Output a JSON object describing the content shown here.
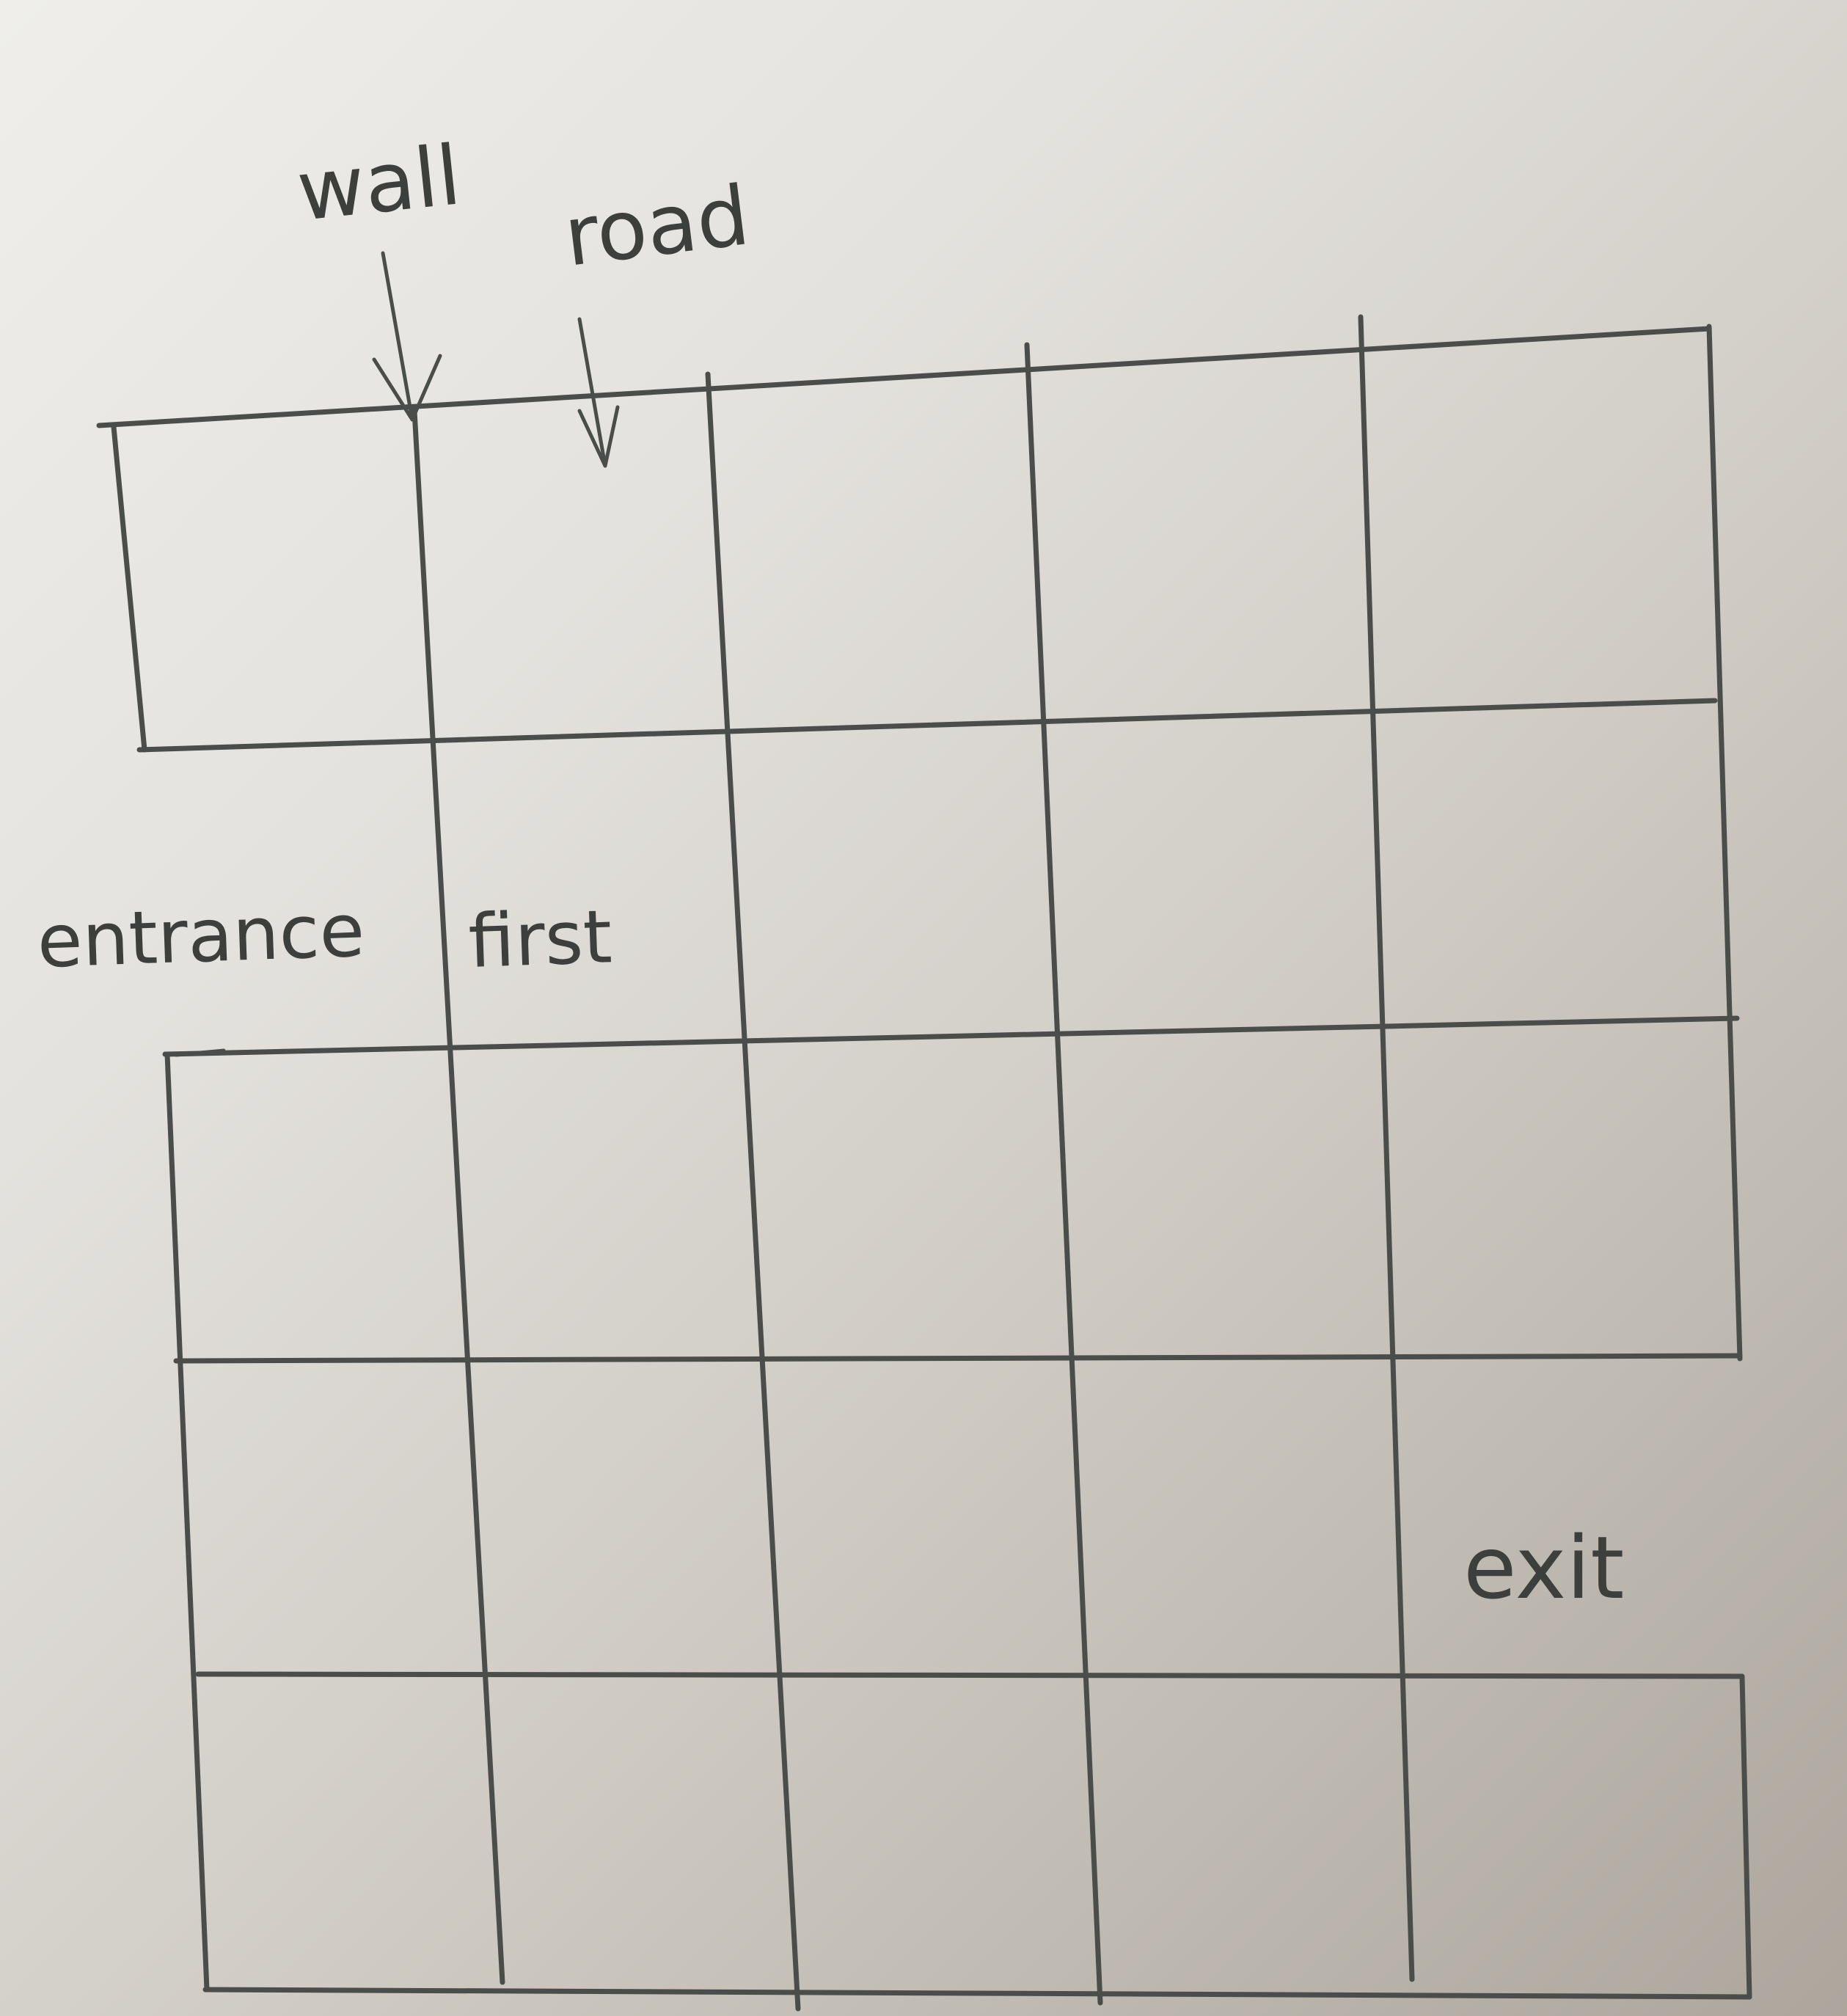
{
  "diagram": {
    "type": "maze-grid-sketch",
    "rows": 5,
    "columns": 5,
    "labels": {
      "wall": "wall",
      "road": "road",
      "entrance": "entrance",
      "first": "first",
      "exit": "exit"
    },
    "openings": {
      "entrance": {
        "side": "left",
        "row": 2
      },
      "exit": {
        "side": "right",
        "row": 4
      }
    },
    "ink_color": "#4a4d4a",
    "paper_color": "#e6e4e0"
  }
}
